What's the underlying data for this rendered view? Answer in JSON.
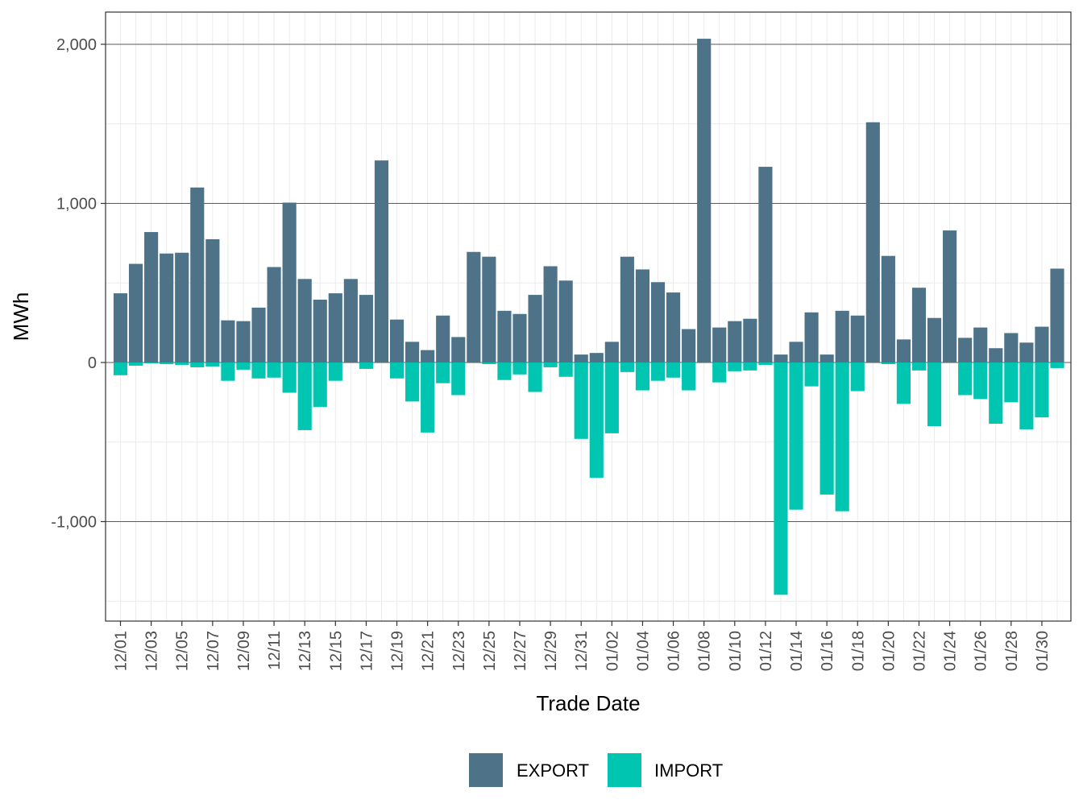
{
  "chart_data": {
    "type": "bar",
    "stacked": true,
    "xlabel": "Trade Date",
    "ylabel": "MWh",
    "ylim": [
      -1600,
      2200
    ],
    "y_ticks": [
      -1000,
      0,
      1000,
      2000
    ],
    "y_tick_labels": [
      "-1,000",
      "0",
      "1,000",
      "2,000"
    ],
    "grid": true,
    "legend_position": "bottom",
    "x_tick_labels": [
      "12/01",
      "12/03",
      "12/05",
      "12/07",
      "12/09",
      "12/11",
      "12/13",
      "12/15",
      "12/17",
      "12/19",
      "12/21",
      "12/23",
      "12/25",
      "12/27",
      "12/29",
      "12/31",
      "01/02",
      "01/04",
      "01/06",
      "01/08",
      "01/10",
      "01/12",
      "01/14",
      "01/16",
      "01/18",
      "01/20",
      "01/22",
      "01/24",
      "01/26",
      "01/28",
      "01/30"
    ],
    "categories": [
      "12/01",
      "12/02",
      "12/03",
      "12/04",
      "12/05",
      "12/06",
      "12/07",
      "12/08",
      "12/09",
      "12/10",
      "12/11",
      "12/12",
      "12/13",
      "12/14",
      "12/15",
      "12/16",
      "12/17",
      "12/18",
      "12/19",
      "12/20",
      "12/21",
      "12/22",
      "12/23",
      "12/24",
      "12/25",
      "12/26",
      "12/27",
      "12/28",
      "12/29",
      "12/30",
      "12/31",
      "01/01",
      "01/02",
      "01/03",
      "01/04",
      "01/05",
      "01/06",
      "01/07",
      "01/08",
      "01/09",
      "01/10",
      "01/11",
      "01/12",
      "01/13",
      "01/14",
      "01/15",
      "01/16",
      "01/17",
      "01/18",
      "01/19",
      "01/20",
      "01/21",
      "01/22",
      "01/23",
      "01/24",
      "01/25",
      "01/26",
      "01/27",
      "01/28",
      "01/29",
      "01/30",
      "01/31"
    ],
    "series": [
      {
        "name": "EXPORT",
        "color": "#4e7389",
        "values": [
          435,
          620,
          820,
          685,
          690,
          1100,
          775,
          265,
          260,
          345,
          600,
          1005,
          525,
          395,
          435,
          525,
          425,
          1270,
          270,
          130,
          78,
          295,
          160,
          695,
          665,
          325,
          305,
          425,
          605,
          515,
          50,
          60,
          130,
          665,
          585,
          505,
          440,
          210,
          2035,
          220,
          260,
          275,
          1230,
          50,
          130,
          315,
          50,
          325,
          295,
          1510,
          670,
          145,
          470,
          280,
          830,
          155,
          220,
          90,
          185,
          125,
          225,
          590
        ]
      },
      {
        "name": "IMPORT",
        "color": "#00c5b0",
        "values": [
          -80,
          -20,
          -5,
          -10,
          -15,
          -30,
          -25,
          -115,
          -45,
          -100,
          -95,
          -190,
          -425,
          -280,
          -115,
          0,
          -40,
          0,
          -100,
          -245,
          -440,
          -130,
          -205,
          0,
          -10,
          -110,
          -75,
          -185,
          -30,
          -90,
          -480,
          -725,
          -445,
          -60,
          -175,
          -115,
          -95,
          -175,
          0,
          -125,
          -55,
          -50,
          -15,
          -1460,
          -925,
          -150,
          -830,
          -935,
          -180,
          0,
          -10,
          -260,
          -50,
          -400,
          0,
          -205,
          -230,
          -385,
          -250,
          -420,
          -345,
          -35
        ]
      }
    ]
  }
}
